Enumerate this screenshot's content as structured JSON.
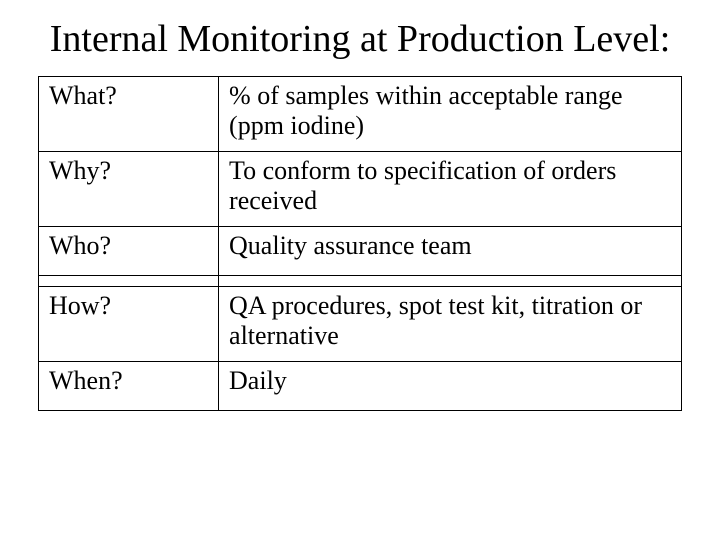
{
  "title": "Internal Monitoring at Production Level:",
  "table": {
    "columns": [
      "question",
      "answer"
    ],
    "col_widths_pct": [
      28,
      72
    ],
    "border_color": "#000000",
    "font_family": "Times New Roman",
    "font_size_pt": 20,
    "rows": [
      {
        "question": "What?",
        "answer": "% of samples within acceptable range (ppm iodine)",
        "lines": 2
      },
      {
        "question": "Why?",
        "answer": "To conform to specification of orders received",
        "lines": 2
      },
      {
        "question": "Who?",
        "answer": "Quality assurance team",
        "lines": 1
      },
      {
        "question": "",
        "answer": "",
        "lines": 0
      },
      {
        "question": "How?",
        "answer": "QA procedures, spot test kit, titration or alternative",
        "lines": 2
      },
      {
        "question": "When?",
        "answer": "Daily",
        "lines": 1
      }
    ]
  },
  "colors": {
    "background": "#ffffff",
    "text": "#000000",
    "border": "#000000"
  }
}
